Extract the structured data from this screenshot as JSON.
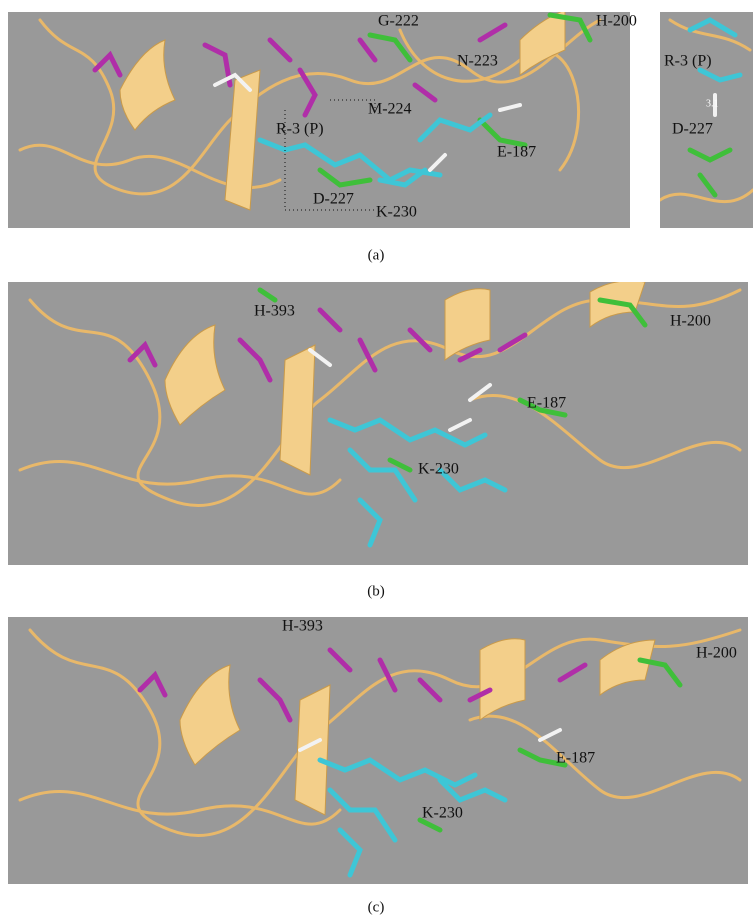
{
  "figure": {
    "panels": [
      {
        "caption": "(a)",
        "labels": [
          "G-222",
          "N-223",
          "H-200",
          "M-224",
          "R-3 (P)",
          "E-187",
          "D-227",
          "K-230"
        ],
        "inset_labels": [
          "R-3 (P)",
          "3.1",
          "D-227"
        ]
      },
      {
        "caption": "(b)",
        "labels": [
          "H-393",
          "H-200",
          "E-187",
          "K-230"
        ]
      },
      {
        "caption": "(c)",
        "labels": [
          "H-393",
          "H-200",
          "E-187",
          "K-230"
        ]
      }
    ]
  }
}
